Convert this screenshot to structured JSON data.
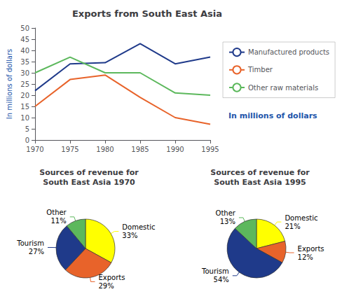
{
  "chart_data": [
    {
      "type": "line",
      "title": "Exports from South East Asia",
      "ylabel": "In millions of dollars",
      "annotation": "In millions of dollars",
      "x": [
        1970,
        1975,
        1980,
        1985,
        1990,
        1995
      ],
      "xlim": [
        1970,
        1995
      ],
      "xticks": [
        1970,
        1975,
        1980,
        1985,
        1990,
        1995
      ],
      "ylim": [
        0,
        50
      ],
      "yticks": [
        0,
        5,
        10,
        15,
        20,
        25,
        30,
        35,
        40,
        45,
        50
      ],
      "grid": false,
      "legend": "upper right",
      "series": [
        {
          "name": "Manufactured products",
          "color": "#1F3A8A",
          "values": [
            22,
            34,
            34.5,
            43,
            34,
            37
          ]
        },
        {
          "name": "Timber",
          "color": "#E8632A",
          "values": [
            15,
            27,
            29,
            19,
            10,
            7
          ]
        },
        {
          "name": "Other raw materials",
          "color": "#5CB85C",
          "values": [
            30,
            37,
            30,
            30,
            21,
            20
          ]
        }
      ]
    },
    {
      "type": "pie",
      "title": "Sources of revenue for\nSouth East Asia 1970",
      "categories": [
        "Domestic",
        "Exports",
        "Tourism",
        "Other"
      ],
      "values": [
        33,
        29,
        27,
        11
      ],
      "value_labels": [
        "33%",
        "29%",
        "27%",
        "11%"
      ],
      "colors": [
        "#FFFF00",
        "#E8632A",
        "#1F3A8A",
        "#5CB85C"
      ],
      "data_labels": true
    },
    {
      "type": "pie",
      "title": "Sources of revenue for\nSouth East Asia 1995",
      "categories": [
        "Domestic",
        "Exports",
        "Tourism",
        "Other"
      ],
      "values": [
        21,
        12,
        54,
        13
      ],
      "value_labels": [
        "21%",
        "12%",
        "54%",
        "13%"
      ],
      "colors": [
        "#FFFF00",
        "#E8632A",
        "#1F3A8A",
        "#5CB85C"
      ],
      "data_labels": true
    }
  ]
}
